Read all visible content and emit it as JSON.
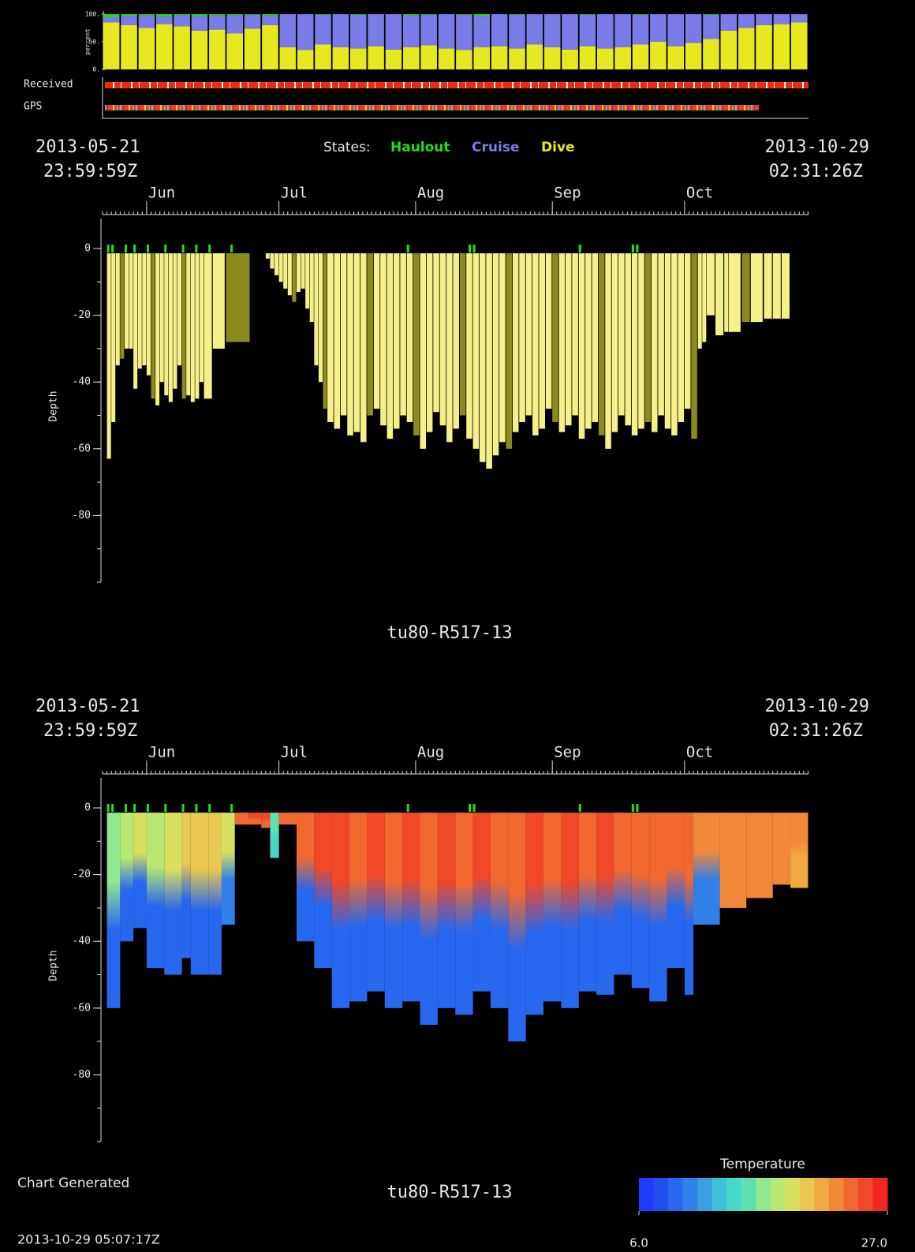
{
  "chart_data": [
    {
      "type": "stacked_bar",
      "ylabel": "percent",
      "legend_title": "States:",
      "strips": [
        "Received",
        "GPS"
      ],
      "xlim": [
        0,
        160.1
      ],
      "ylim": [
        0,
        100
      ],
      "yticks": [
        {
          "value": 0,
          "label": "0."
        },
        {
          "value": 50,
          "label": "50."
        },
        {
          "value": 100,
          "label": "100."
        }
      ],
      "x": [
        2,
        6,
        10,
        14,
        18,
        22,
        26,
        30,
        34,
        38,
        42,
        46,
        50,
        54,
        58,
        62,
        66,
        70,
        74,
        78,
        82,
        86,
        90,
        94,
        98,
        102,
        106,
        110,
        114,
        118,
        122,
        126,
        130,
        134,
        138,
        142,
        146,
        150,
        154,
        158
      ],
      "series": [
        {
          "name": "Haulout",
          "color": "#22dd22",
          "values": [
            5,
            3,
            2,
            4,
            2,
            3,
            2,
            2,
            1,
            2,
            0,
            0,
            1,
            0,
            1,
            0,
            0,
            2,
            1,
            0,
            1,
            3,
            0,
            1,
            0,
            0,
            0,
            1,
            0,
            0,
            1,
            0,
            0,
            0,
            1,
            0,
            0,
            0,
            0,
            0
          ]
        },
        {
          "name": "Cruise",
          "color": "#7b7be8",
          "values": [
            10,
            17,
            23,
            14,
            20,
            27,
            26,
            33,
            25,
            18,
            60,
            65,
            54,
            60,
            61,
            58,
            64,
            58,
            55,
            62,
            64,
            57,
            58,
            61,
            55,
            60,
            64,
            57,
            62,
            60,
            54,
            50,
            58,
            52,
            44,
            30,
            25,
            20,
            18,
            15
          ]
        },
        {
          "name": "Dive",
          "color": "#e8e820",
          "values": [
            85,
            80,
            75,
            82,
            78,
            70,
            72,
            65,
            74,
            80,
            40,
            35,
            45,
            40,
            38,
            42,
            36,
            40,
            44,
            38,
            35,
            40,
            42,
            38,
            45,
            40,
            36,
            42,
            38,
            40,
            45,
            50,
            42,
            48,
            55,
            70,
            75,
            80,
            82,
            85
          ]
        }
      ]
    },
    {
      "type": "bar",
      "title": "tu80-R517-13",
      "ylabel": "Depth",
      "start_label": [
        "2013-05-21",
        "23:59:59Z"
      ],
      "end_label": [
        "2013-10-29",
        "02:31:26Z"
      ],
      "xlim": [
        0,
        160.1
      ],
      "xticks": [
        {
          "value": 10,
          "label": "Jun"
        },
        {
          "value": 40,
          "label": "Jul"
        },
        {
          "value": 71,
          "label": "Aug"
        },
        {
          "value": 102,
          "label": "Sep"
        },
        {
          "value": 132,
          "label": "Oct"
        }
      ],
      "ylim": [
        -100,
        9
      ],
      "yticks": [
        0,
        -20,
        -40,
        -60,
        -80
      ],
      "color": "#f5f08a",
      "x": [
        1,
        2,
        3,
        4,
        5,
        6,
        7,
        8,
        9,
        10,
        11,
        12,
        13,
        14,
        15,
        16,
        17,
        18,
        19,
        20,
        21,
        22,
        23,
        25,
        28,
        37,
        38,
        39,
        40,
        41,
        42,
        43,
        44,
        45,
        46,
        47,
        48,
        49,
        50,
        51,
        52.5,
        54,
        55.5,
        57,
        58.5,
        60,
        61.5,
        63,
        64.5,
        66,
        67.5,
        69,
        70.5,
        72,
        73.5,
        75,
        76.5,
        78,
        79.5,
        81,
        82.5,
        84,
        85.5,
        87,
        88.5,
        90,
        91.5,
        93,
        94.5,
        96,
        97.5,
        99,
        100.5,
        102,
        103.5,
        105,
        106.5,
        108,
        109.5,
        111,
        112.5,
        114,
        115.5,
        117,
        118.5,
        120,
        121.5,
        123,
        124.5,
        126,
        127.5,
        129,
        130.5,
        132,
        133.5,
        135,
        136,
        137,
        139,
        141,
        142,
        145,
        147,
        150,
        152,
        154
      ],
      "values": [
        -63,
        -52,
        -35,
        -33,
        -30,
        -30,
        -42,
        -36,
        -35,
        -38,
        -45,
        -47,
        -40,
        -44,
        -46,
        -42,
        -35,
        -45,
        -44,
        -46,
        -45,
        -40,
        -45,
        -30,
        -28,
        -3,
        -6,
        -8,
        -10,
        -12,
        -14,
        -16,
        -13,
        -12,
        -18,
        -22,
        -35,
        -40,
        -48,
        -52,
        -54,
        -50,
        -56,
        -55,
        -58,
        -50,
        -48,
        -53,
        -57,
        -54,
        -50,
        -52,
        -56,
        -60,
        -55,
        -49,
        -53,
        -58,
        -54,
        -50,
        -57,
        -60,
        -64,
        -66,
        -62,
        -58,
        -60,
        -55,
        -52,
        -50,
        -56,
        -54,
        -48,
        -52,
        -55,
        -53,
        -50,
        -57,
        -54,
        -52,
        -56,
        -60,
        -55,
        -50,
        -53,
        -56,
        -54,
        -52,
        -55,
        -50,
        -54,
        -56,
        -52,
        -48,
        -57,
        -30,
        -28,
        -20,
        -26,
        -25,
        -25,
        -22,
        -22,
        -21,
        -21,
        -21
      ],
      "haulouts": {
        "color": "#22dd22",
        "x": [
          1,
          2,
          5,
          7,
          10,
          14,
          18,
          21,
          24,
          29,
          69,
          83,
          84,
          108,
          120,
          121
        ]
      }
    },
    {
      "type": "profile",
      "title": "tu80-R517-13",
      "ylabel": "Depth",
      "start_label": [
        "2013-05-21",
        "23:59:59Z"
      ],
      "end_label": [
        "2013-10-29",
        "02:31:26Z"
      ],
      "xlim": [
        0,
        160.1
      ],
      "xticks": [
        {
          "value": 10,
          "label": "Jun"
        },
        {
          "value": 40,
          "label": "Jul"
        },
        {
          "value": 71,
          "label": "Aug"
        },
        {
          "value": 102,
          "label": "Sep"
        },
        {
          "value": 132,
          "label": "Oct"
        }
      ],
      "ylim": [
        -100,
        9
      ],
      "yticks": [
        0,
        -20,
        -40,
        -60,
        -80
      ],
      "x": [
        1,
        4,
        7,
        10,
        14,
        18,
        20,
        24,
        27,
        30,
        33,
        36,
        38,
        40,
        44,
        48,
        52,
        56,
        60,
        64,
        68,
        72,
        76,
        80,
        84,
        88,
        92,
        96,
        100,
        104,
        108,
        112,
        116,
        120,
        124,
        128,
        132,
        134,
        140,
        146,
        152,
        156
      ],
      "values": [
        -60,
        -40,
        -36,
        -48,
        -50,
        -45,
        -50,
        -50,
        -35,
        -5,
        -5,
        -6,
        -15,
        -5,
        -40,
        -48,
        -60,
        -58,
        -55,
        -60,
        -58,
        -65,
        -60,
        -62,
        -55,
        -60,
        -70,
        -62,
        -58,
        -60,
        -55,
        -56,
        -50,
        -54,
        -58,
        -48,
        -56,
        -35,
        -30,
        -27,
        -23,
        -24
      ],
      "surface_temp": [
        17,
        18,
        19,
        18,
        19,
        20,
        21,
        20,
        19,
        25,
        26,
        26,
        15,
        25,
        25,
        26,
        26,
        25,
        26,
        25,
        26,
        25,
        26,
        25,
        26,
        25,
        25,
        26,
        25,
        26,
        25,
        26,
        25,
        25,
        25,
        24,
        24,
        23,
        23,
        23,
        23,
        23
      ],
      "bottom_temp": [
        8,
        9,
        9,
        8,
        8,
        8,
        8,
        9,
        10,
        24,
        25,
        25,
        14,
        24,
        8,
        8,
        8,
        8,
        9,
        8,
        8,
        8,
        8,
        8,
        9,
        8,
        8,
        8,
        9,
        8,
        8,
        8,
        9,
        8,
        8,
        9,
        9,
        10,
        23,
        23,
        23,
        22
      ],
      "haulouts": {
        "color": "#22dd22",
        "x": [
          1,
          2,
          5,
          7,
          10,
          14,
          18,
          21,
          24,
          29,
          69,
          83,
          84,
          108,
          120,
          121
        ]
      },
      "colorbar": {
        "label": "Temperature",
        "clim": [
          6,
          27
        ],
        "ticks": [
          {
            "value": 6,
            "label": "6.0"
          },
          {
            "value": 27,
            "label": "27.0"
          }
        ],
        "colors": [
          "#1e3cff",
          "#2050f0",
          "#2868ee",
          "#3080ea",
          "#38a0e0",
          "#40c0d8",
          "#48d8c8",
          "#60e0b0",
          "#90e890",
          "#b8e870",
          "#d8e060",
          "#e8c850",
          "#f0a840",
          "#f08838",
          "#f06830",
          "#f04828",
          "#f02820"
        ]
      }
    }
  ],
  "footer": {
    "label": "Chart Generated",
    "timestamp": "2013-10-29 05:07:17Z"
  }
}
